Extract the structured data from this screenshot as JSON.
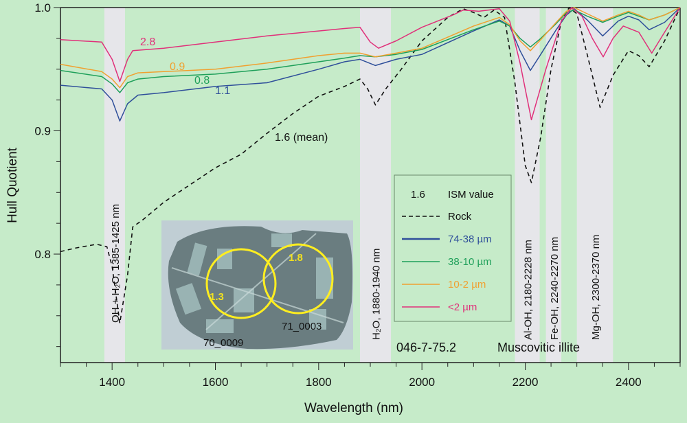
{
  "chart_data": {
    "type": "line",
    "title": "",
    "xlabel": "Wavelength (nm)",
    "ylabel": "Hull Quotient",
    "xlim": [
      1300,
      2500
    ],
    "ylim": [
      0.712,
      1.0
    ],
    "x_ticks": [
      1400,
      1600,
      1800,
      2000,
      2200,
      2400
    ],
    "y_ticks": [
      "0.8",
      "0.9",
      "1.0"
    ],
    "grid": false,
    "legend_placement": "center-right",
    "legend": {
      "header_value": "1.6",
      "header_label": "ISM value",
      "entries": [
        "Rock",
        "74-38 µm",
        "38-10 µm",
        "10-2 µm",
        "<2 µm"
      ]
    },
    "absorption_bands": [
      {
        "label": "OH + H₂O, 1385-1425 nm",
        "range": [
          1385,
          1425
        ]
      },
      {
        "label": "H₂O, 1880-1940 nm",
        "range": [
          1880,
          1940
        ]
      },
      {
        "label": "Al-OH, 2180-2228 nm",
        "range": [
          2180,
          2228
        ]
      },
      {
        "label": "Fe-OH, 2240-2270 nm",
        "range": [
          2240,
          2270
        ]
      },
      {
        "label": "Mg-OH, 2300-2370 nm",
        "range": [
          2300,
          2370
        ]
      }
    ],
    "sample_label": "046-7-75.2",
    "mineral_label": "Muscovitic illite",
    "series": [
      {
        "name": "Rock",
        "color": "#111111",
        "dashed": true,
        "ism_label": "1.6 (mean)",
        "x": [
          1300,
          1330,
          1370,
          1390,
          1400,
          1415,
          1430,
          1440,
          1460,
          1500,
          1550,
          1600,
          1650,
          1700,
          1750,
          1800,
          1850,
          1880,
          1895,
          1910,
          1930,
          1960,
          2000,
          2050,
          2080,
          2100,
          2120,
          2140,
          2160,
          2180,
          2200,
          2212,
          2230,
          2250,
          2270,
          2285,
          2300,
          2320,
          2345,
          2370,
          2400,
          2420,
          2440,
          2470,
          2500
        ],
        "y": [
          0.802,
          0.805,
          0.808,
          0.806,
          0.79,
          0.744,
          0.783,
          0.822,
          0.828,
          0.842,
          0.856,
          0.87,
          0.881,
          0.898,
          0.914,
          0.928,
          0.936,
          0.942,
          0.934,
          0.921,
          0.934,
          0.95,
          0.973,
          0.992,
          0.999,
          0.996,
          0.992,
          0.998,
          0.992,
          0.939,
          0.872,
          0.858,
          0.895,
          0.95,
          0.989,
          1.0,
          0.995,
          0.962,
          0.919,
          0.945,
          0.965,
          0.961,
          0.952,
          0.973,
          1.0
        ]
      },
      {
        "name": "74-38 µm",
        "color": "#2f4f9a",
        "ism_label": "1.1",
        "x": [
          1300,
          1380,
          1400,
          1415,
          1430,
          1450,
          1500,
          1600,
          1700,
          1800,
          1850,
          1880,
          1910,
          1950,
          2000,
          2100,
          2150,
          2170,
          2190,
          2210,
          2230,
          2260,
          2280,
          2295,
          2320,
          2350,
          2380,
          2400,
          2420,
          2440,
          2470,
          2500
        ],
        "y": [
          0.937,
          0.934,
          0.925,
          0.908,
          0.922,
          0.929,
          0.931,
          0.936,
          0.939,
          0.95,
          0.956,
          0.958,
          0.953,
          0.958,
          0.962,
          0.981,
          0.99,
          0.985,
          0.965,
          0.949,
          0.962,
          0.982,
          0.994,
          0.999,
          0.99,
          0.977,
          0.989,
          0.993,
          0.99,
          0.982,
          0.988,
          1.0
        ]
      },
      {
        "name": "38-10 µm",
        "color": "#1fa05a",
        "ism_label": "0.8",
        "x": [
          1300,
          1380,
          1400,
          1415,
          1430,
          1450,
          1500,
          1600,
          1700,
          1800,
          1850,
          1880,
          1910,
          1950,
          2000,
          2100,
          2150,
          2170,
          2190,
          2210,
          2230,
          2260,
          2280,
          2295,
          2320,
          2350,
          2380,
          2400,
          2420,
          2440,
          2470,
          2500
        ],
        "y": [
          0.949,
          0.944,
          0.938,
          0.931,
          0.939,
          0.942,
          0.944,
          0.946,
          0.95,
          0.956,
          0.959,
          0.961,
          0.96,
          0.962,
          0.966,
          0.982,
          0.989,
          0.985,
          0.975,
          0.968,
          0.975,
          0.987,
          0.996,
          0.998,
          0.993,
          0.988,
          0.993,
          0.996,
          0.993,
          0.99,
          0.994,
          1.0
        ]
      },
      {
        "name": "10-2 µm",
        "color": "#f0a030",
        "ism_label": "0.9",
        "x": [
          1300,
          1380,
          1400,
          1415,
          1430,
          1450,
          1500,
          1600,
          1700,
          1800,
          1850,
          1880,
          1910,
          1950,
          2000,
          2100,
          2150,
          2170,
          2190,
          2210,
          2230,
          2260,
          2280,
          2295,
          2320,
          2350,
          2380,
          2400,
          2420,
          2440,
          2470,
          2500
        ],
        "y": [
          0.954,
          0.948,
          0.942,
          0.935,
          0.944,
          0.947,
          0.948,
          0.95,
          0.955,
          0.961,
          0.963,
          0.963,
          0.96,
          0.963,
          0.967,
          0.985,
          0.992,
          0.986,
          0.973,
          0.965,
          0.974,
          0.988,
          0.997,
          1.0,
          0.995,
          0.989,
          0.994,
          0.997,
          0.994,
          0.99,
          0.994,
          1.0
        ]
      },
      {
        "name": "<2 µm",
        "color": "#e0307a",
        "ism_label": "2.8",
        "x": [
          1300,
          1380,
          1400,
          1415,
          1430,
          1440,
          1500,
          1600,
          1700,
          1800,
          1850,
          1880,
          1900,
          1916,
          1950,
          2000,
          2060,
          2080,
          2110,
          2150,
          2170,
          2190,
          2212,
          2240,
          2270,
          2290,
          2310,
          2330,
          2351,
          2370,
          2390,
          2420,
          2445,
          2470,
          2500
        ],
        "y": [
          0.974,
          0.972,
          0.958,
          0.94,
          0.958,
          0.965,
          0.967,
          0.972,
          0.977,
          0.981,
          0.983,
          0.984,
          0.972,
          0.967,
          0.973,
          0.984,
          0.994,
          0.998,
          0.997,
          0.999,
          0.989,
          0.955,
          0.909,
          0.95,
          0.989,
          1.0,
          0.993,
          0.975,
          0.96,
          0.975,
          0.985,
          0.98,
          0.963,
          0.98,
          1.0
        ]
      }
    ],
    "inset_photo": {
      "spots": [
        {
          "value": "1.3",
          "id": "70_0009"
        },
        {
          "value": "1.8",
          "id": "71_0003"
        }
      ],
      "circle_color": "#ffee20"
    },
    "background_color": "#c6ebc9",
    "band_color": "#e6e6ea"
  }
}
